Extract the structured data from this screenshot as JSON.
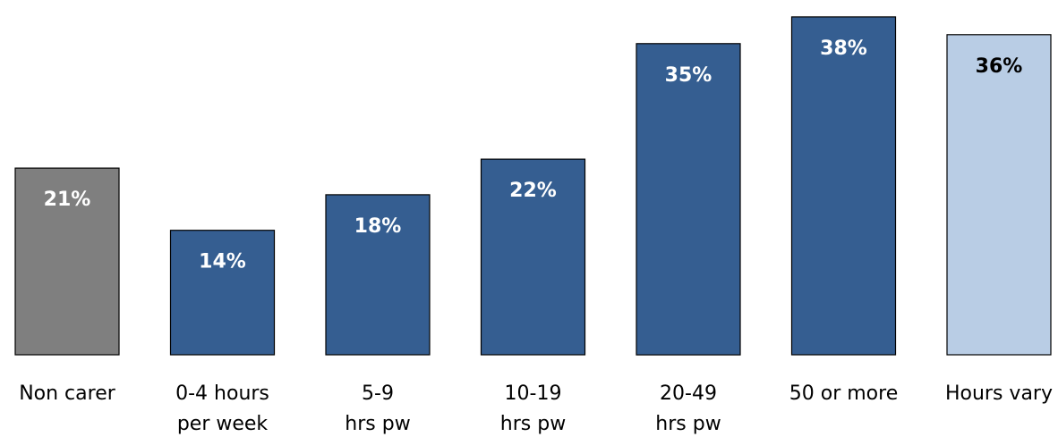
{
  "chart_data": {
    "type": "bar",
    "title": "",
    "xlabel": "",
    "ylabel": "",
    "categories": [
      [
        "Non carer"
      ],
      [
        "0-4 hours",
        "per week"
      ],
      [
        "5-9",
        "hrs pw"
      ],
      [
        "10-19",
        "hrs pw"
      ],
      [
        "20-49",
        "hrs pw"
      ],
      [
        "50 or more"
      ],
      [
        "Hours vary"
      ]
    ],
    "values": [
      21,
      14,
      18,
      22,
      35,
      38,
      36
    ],
    "data_labels": [
      "21%",
      "14%",
      "18%",
      "22%",
      "35%",
      "38%",
      "36%"
    ],
    "ylim": [
      0,
      40
    ],
    "grid": false,
    "legend": "none",
    "colors": [
      "#7f7f7f",
      "#355e91",
      "#355e91",
      "#355e91",
      "#355e91",
      "#355e91",
      "#b9cde5"
    ],
    "label_colors": [
      "#ffffff",
      "#ffffff",
      "#ffffff",
      "#ffffff",
      "#ffffff",
      "#ffffff",
      "#000000"
    ],
    "bar_stroke": "#000000"
  }
}
